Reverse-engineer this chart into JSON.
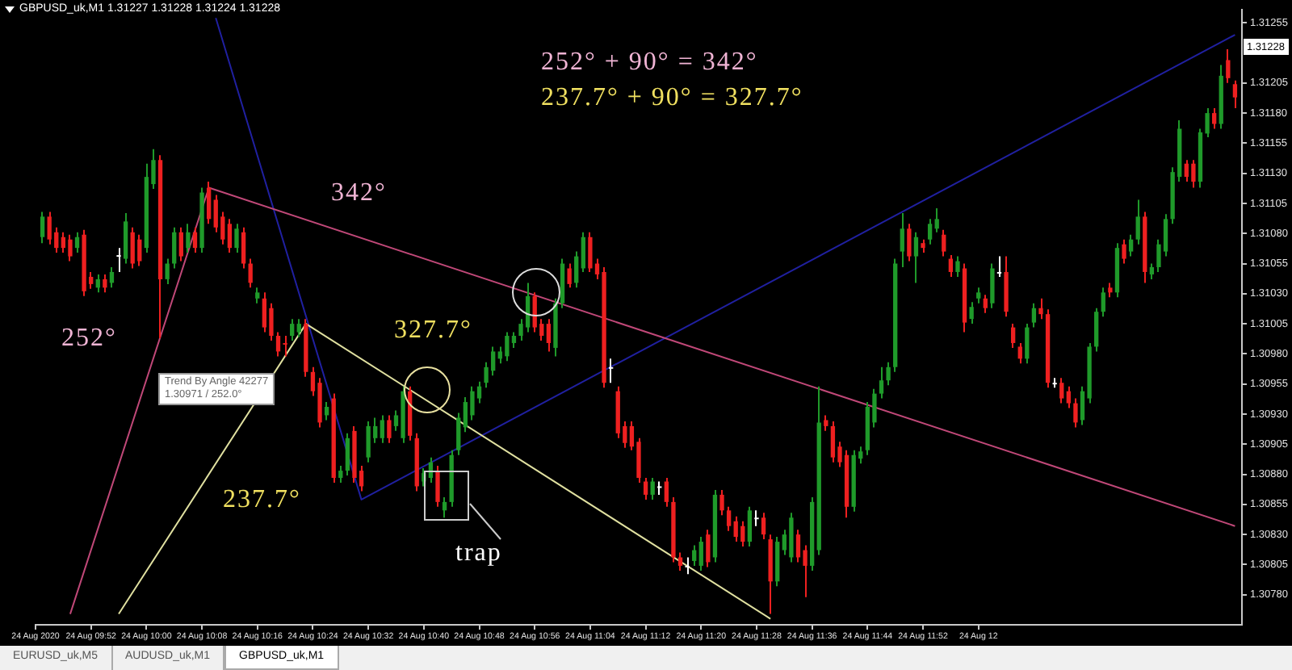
{
  "chart_data": {
    "type": "candlestick",
    "title": "GBPUSD_uk,M1  1.31227 1.31228 1.31224 1.31228",
    "x": [
      "2020-08-24T09:45",
      "2020-08-24T09:46",
      "2020-08-24T09:47",
      "2020-08-24T09:48",
      "2020-08-24T09:49",
      "2020-08-24T09:50",
      "2020-08-24T09:51",
      "2020-08-24T09:52",
      "2020-08-24T09:53",
      "2020-08-24T09:54",
      "2020-08-24T09:55",
      "2020-08-24T09:56",
      "2020-08-24T09:57",
      "2020-08-24T09:58",
      "2020-08-24T09:59",
      "2020-08-24T10:00",
      "2020-08-24T10:01",
      "2020-08-24T10:02",
      "2020-08-24T10:03",
      "2020-08-24T10:04",
      "2020-08-24T10:05",
      "2020-08-24T10:06",
      "2020-08-24T10:07",
      "2020-08-24T10:08",
      "2020-08-24T10:09",
      "2020-08-24T10:10",
      "2020-08-24T10:11",
      "2020-08-24T10:12",
      "2020-08-24T10:13",
      "2020-08-24T10:14",
      "2020-08-24T10:15",
      "2020-08-24T10:16",
      "2020-08-24T10:17",
      "2020-08-24T10:18",
      "2020-08-24T10:19",
      "2020-08-24T10:20",
      "2020-08-24T10:21",
      "2020-08-24T10:22",
      "2020-08-24T10:23",
      "2020-08-24T10:24",
      "2020-08-24T10:25",
      "2020-08-24T10:26",
      "2020-08-24T10:27",
      "2020-08-24T10:28",
      "2020-08-24T10:29",
      "2020-08-24T10:30",
      "2020-08-24T10:31",
      "2020-08-24T10:32",
      "2020-08-24T10:33",
      "2020-08-24T10:34",
      "2020-08-24T10:35",
      "2020-08-24T10:36",
      "2020-08-24T10:37",
      "2020-08-24T10:38",
      "2020-08-24T10:39",
      "2020-08-24T10:40",
      "2020-08-24T10:41",
      "2020-08-24T10:42",
      "2020-08-24T10:43",
      "2020-08-24T10:44",
      "2020-08-24T10:45",
      "2020-08-24T10:46",
      "2020-08-24T10:47",
      "2020-08-24T10:48",
      "2020-08-24T10:49",
      "2020-08-24T10:50",
      "2020-08-24T10:51",
      "2020-08-24T10:52",
      "2020-08-24T10:53",
      "2020-08-24T10:54",
      "2020-08-24T10:55",
      "2020-08-24T10:56",
      "2020-08-24T10:57",
      "2020-08-24T10:58",
      "2020-08-24T10:59",
      "2020-08-24T11:00",
      "2020-08-24T11:01",
      "2020-08-24T11:02",
      "2020-08-24T11:03",
      "2020-08-24T11:04",
      "2020-08-24T11:05",
      "2020-08-24T11:06",
      "2020-08-24T11:07",
      "2020-08-24T11:08",
      "2020-08-24T11:09",
      "2020-08-24T11:10",
      "2020-08-24T11:11",
      "2020-08-24T11:12",
      "2020-08-24T11:13",
      "2020-08-24T11:14",
      "2020-08-24T11:15",
      "2020-08-24T11:16",
      "2020-08-24T11:17",
      "2020-08-24T11:18",
      "2020-08-24T11:19",
      "2020-08-24T11:20",
      "2020-08-24T11:21",
      "2020-08-24T11:22",
      "2020-08-24T11:23",
      "2020-08-24T11:24",
      "2020-08-24T11:25",
      "2020-08-24T11:26",
      "2020-08-24T11:27",
      "2020-08-24T11:28",
      "2020-08-24T11:29",
      "2020-08-24T11:30",
      "2020-08-24T11:31",
      "2020-08-24T11:32",
      "2020-08-24T11:33",
      "2020-08-24T11:34",
      "2020-08-24T11:35",
      "2020-08-24T11:36",
      "2020-08-24T11:37",
      "2020-08-24T11:38",
      "2020-08-24T11:39",
      "2020-08-24T11:40",
      "2020-08-24T11:41",
      "2020-08-24T11:42",
      "2020-08-24T11:43",
      "2020-08-24T11:44",
      "2020-08-24T11:45",
      "2020-08-24T11:46",
      "2020-08-24T11:47",
      "2020-08-24T11:48",
      "2020-08-24T11:49",
      "2020-08-24T11:50",
      "2020-08-24T11:51",
      "2020-08-24T11:52",
      "2020-08-24T11:53",
      "2020-08-24T11:54",
      "2020-08-24T11:55",
      "2020-08-24T11:56",
      "2020-08-24T11:57",
      "2020-08-24T11:58",
      "2020-08-24T11:59",
      "2020-08-24T12:00",
      "2020-08-24T12:01",
      "2020-08-24T12:02",
      "2020-08-24T12:03",
      "2020-08-24T12:04",
      "2020-08-24T12:05",
      "2020-08-24T12:06",
      "2020-08-24T12:07",
      "2020-08-24T12:08",
      "2020-08-24T12:09",
      "2020-08-24T12:10",
      "2020-08-24T12:11",
      "2020-08-24T12:12",
      "2020-08-24T12:13",
      "2020-08-24T12:14",
      "2020-08-24T12:15",
      "2020-08-24T12:16",
      "2020-08-24T12:17",
      "2020-08-24T12:18",
      "2020-08-24T12:19",
      "2020-08-24T12:20",
      "2020-08-24T12:21",
      "2020-08-24T12:22",
      "2020-08-24T12:23",
      "2020-08-24T12:24",
      "2020-08-24T12:25",
      "2020-08-24T12:26",
      "2020-08-24T12:27",
      "2020-08-24T12:28",
      "2020-08-24T12:29",
      "2020-08-24T12:30",
      "2020-08-24T12:31",
      "2020-08-24T12:32",
      "2020-08-24T12:33",
      "2020-08-24T12:34",
      "2020-08-24T12:35",
      "2020-08-24T12:36",
      "2020-08-24T12:37"
    ],
    "ohlc": [
      [
        1.31077,
        1.31098,
        1.31072,
        1.31094
      ],
      [
        1.31094,
        1.31098,
        1.31071,
        1.31075
      ],
      [
        1.31081,
        1.31085,
        1.31064,
        1.31068
      ],
      [
        1.31077,
        1.31081,
        1.31064,
        1.31068
      ],
      [
        1.31075,
        1.31079,
        1.31057,
        1.31061
      ],
      [
        1.31068,
        1.31081,
        1.31064,
        1.31077
      ],
      [
        1.31079,
        1.31083,
        1.31028,
        1.31032
      ],
      [
        1.31044,
        1.31048,
        1.31034,
        1.31038
      ],
      [
        1.31035,
        1.31046,
        1.31031,
        1.31042
      ],
      [
        1.31042,
        1.31046,
        1.31031,
        1.31035
      ],
      [
        1.31039,
        1.31052,
        1.31035,
        1.31048
      ],
      [
        1.31062,
        1.31068,
        1.31048,
        1.31062
      ],
      [
        1.31059,
        1.31097,
        1.31055,
        1.3109
      ],
      [
        1.31081,
        1.31085,
        1.31051,
        1.31055
      ],
      [
        1.31075,
        1.31079,
        1.31053,
        1.31057
      ],
      [
        1.31068,
        1.31138,
        1.31064,
        1.31127
      ],
      [
        1.31121,
        1.3115,
        1.31117,
        1.31141
      ],
      [
        1.31141,
        1.31145,
        1.30993,
        1.31042
      ],
      [
        1.31042,
        1.31059,
        1.31038,
        1.31055
      ],
      [
        1.31055,
        1.31085,
        1.31051,
        1.31081
      ],
      [
        1.31081,
        1.31085,
        1.31057,
        1.31061
      ],
      [
        1.31068,
        1.31088,
        1.31064,
        1.31081
      ],
      [
        1.31081,
        1.31085,
        1.31064,
        1.31068
      ],
      [
        1.31068,
        1.31118,
        1.31064,
        1.31114
      ],
      [
        1.31118,
        1.31123,
        1.31088,
        1.31092
      ],
      [
        1.31108,
        1.31112,
        1.31081,
        1.31085
      ],
      [
        1.31094,
        1.31098,
        1.31071,
        1.31075
      ],
      [
        1.31088,
        1.31092,
        1.31064,
        1.31068
      ],
      [
        1.31068,
        1.31088,
        1.31064,
        1.31084
      ],
      [
        1.31081,
        1.31085,
        1.31051,
        1.31055
      ],
      [
        1.31055,
        1.31059,
        1.31035,
        1.31039
      ],
      [
        1.31026,
        1.31035,
        1.31022,
        1.31031
      ],
      [
        1.31026,
        1.31031,
        1.30998,
        1.31002
      ],
      [
        1.31018,
        1.31022,
        1.30991,
        1.30995
      ],
      [
        1.30995,
        1.30998,
        1.30978,
        1.30982
      ],
      [
        1.30989,
        1.30995,
        1.30978,
        1.30988
      ],
      [
        1.30995,
        1.31009,
        1.30991,
        1.31005
      ],
      [
        1.30998,
        1.31009,
        1.30994,
        1.31005
      ],
      [
        1.31005,
        1.31009,
        1.30961,
        1.30965
      ],
      [
        1.30965,
        1.30969,
        1.30945,
        1.30949
      ],
      [
        1.30956,
        1.3096,
        1.30919,
        1.30923
      ],
      [
        1.30929,
        1.3094,
        1.30925,
        1.30936
      ],
      [
        1.30943,
        1.30947,
        1.30873,
        1.30877
      ],
      [
        1.30877,
        1.30887,
        1.30873,
        1.30883
      ],
      [
        1.30883,
        1.30914,
        1.30879,
        1.3091
      ],
      [
        1.30916,
        1.3092,
        1.30873,
        1.30877
      ],
      [
        1.30883,
        1.30887,
        1.30866,
        1.3087
      ],
      [
        1.30894,
        1.30924,
        1.3089,
        1.3092
      ],
      [
        1.3091,
        1.30927,
        1.30906,
        1.3092
      ],
      [
        1.3091,
        1.30929,
        1.30906,
        1.30925
      ],
      [
        1.30925,
        1.30929,
        1.30906,
        1.3091
      ],
      [
        1.3092,
        1.30933,
        1.30916,
        1.30929
      ],
      [
        1.3091,
        1.30953,
        1.30906,
        1.30949
      ],
      [
        1.30949,
        1.30953,
        1.30908,
        1.30912
      ],
      [
        1.3091,
        1.30914,
        1.30866,
        1.3087
      ],
      [
        1.30874,
        1.30885,
        1.3087,
        1.30881
      ],
      [
        1.30877,
        1.30894,
        1.30873,
        1.3089
      ],
      [
        1.30883,
        1.30887,
        1.30853,
        1.30857
      ],
      [
        1.3085,
        1.30861,
        1.30844,
        1.30857
      ],
      [
        1.30857,
        1.309,
        1.30853,
        1.30896
      ],
      [
        1.309,
        1.30931,
        1.30896,
        1.30927
      ],
      [
        1.30919,
        1.30944,
        1.30915,
        1.3094
      ],
      [
        1.30929,
        1.30953,
        1.30925,
        1.30949
      ],
      [
        1.30943,
        1.30957,
        1.30939,
        1.30953
      ],
      [
        1.30956,
        1.30973,
        1.30952,
        1.30969
      ],
      [
        1.30966,
        1.30986,
        1.30962,
        1.30982
      ],
      [
        1.30976,
        1.30986,
        1.30972,
        1.30982
      ],
      [
        1.30978,
        1.30998,
        1.30974,
        1.30995
      ],
      [
        1.30989,
        1.30998,
        1.30985,
        1.30995
      ],
      [
        1.30995,
        1.31009,
        1.30991,
        1.31005
      ],
      [
        1.31002,
        1.31039,
        1.30998,
        1.31028
      ],
      [
        1.31028,
        1.31031,
        1.30998,
        1.31002
      ],
      [
        1.31005,
        1.31009,
        1.30991,
        1.30995
      ],
      [
        1.31005,
        1.31009,
        1.30982,
        1.30989
      ],
      [
        1.30985,
        1.31026,
        1.30978,
        1.31022
      ],
      [
        1.31022,
        1.31059,
        1.31018,
        1.31055
      ],
      [
        1.31051,
        1.31055,
        1.31035,
        1.31038
      ],
      [
        1.31039,
        1.31065,
        1.31035,
        1.31061
      ],
      [
        1.31051,
        1.31081,
        1.31048,
        1.31077
      ],
      [
        1.31077,
        1.31081,
        1.31048,
        1.31051
      ],
      [
        1.31055,
        1.31059,
        1.31042,
        1.31046
      ],
      [
        1.31048,
        1.31052,
        1.30952,
        1.30956
      ],
      [
        1.30969,
        1.30976,
        1.30956,
        1.30969
      ],
      [
        1.30949,
        1.30953,
        1.3091,
        1.30914
      ],
      [
        1.3092,
        1.30924,
        1.30902,
        1.30906
      ],
      [
        1.3092,
        1.30924,
        1.309,
        1.30903
      ],
      [
        1.30907,
        1.3091,
        1.30873,
        1.30877
      ],
      [
        1.30874,
        1.30877,
        1.30859,
        1.30863
      ],
      [
        1.30863,
        1.30877,
        1.30859,
        1.30874
      ],
      [
        1.3087,
        1.30874,
        1.30863,
        1.3087
      ],
      [
        1.30874,
        1.30877,
        1.30853,
        1.30857
      ],
      [
        1.30857,
        1.30861,
        1.30807,
        1.30811
      ],
      [
        1.30811,
        1.30815,
        1.308,
        1.30804
      ],
      [
        1.30804,
        1.30811,
        1.30797,
        1.30804
      ],
      [
        1.30808,
        1.30821,
        1.30804,
        1.30817
      ],
      [
        1.30804,
        1.30828,
        1.308,
        1.30824
      ],
      [
        1.3083,
        1.30834,
        1.30803,
        1.30807
      ],
      [
        1.30811,
        1.30867,
        1.30807,
        1.30863
      ],
      [
        1.30863,
        1.30867,
        1.30846,
        1.3085
      ],
      [
        1.3085,
        1.30853,
        1.30833,
        1.30837
      ],
      [
        1.30841,
        1.30845,
        1.30824,
        1.30828
      ],
      [
        1.30837,
        1.30841,
        1.3082,
        1.30824
      ],
      [
        1.30824,
        1.30853,
        1.3082,
        1.3085
      ],
      [
        1.30844,
        1.3085,
        1.30837,
        1.30844
      ],
      [
        1.30844,
        1.30848,
        1.30826,
        1.3083
      ],
      [
        1.30826,
        1.3083,
        1.30764,
        1.30791
      ],
      [
        1.30791,
        1.30828,
        1.30787,
        1.30824
      ],
      [
        1.30817,
        1.30834,
        1.30813,
        1.3083
      ],
      [
        1.30811,
        1.30848,
        1.30807,
        1.30844
      ],
      [
        1.3083,
        1.30834,
        1.30807,
        1.30811
      ],
      [
        1.30817,
        1.30821,
        1.30778,
        1.30804
      ],
      [
        1.30804,
        1.30861,
        1.308,
        1.30857
      ],
      [
        1.30817,
        1.30953,
        1.30813,
        1.30923
      ],
      [
        1.30925,
        1.30929,
        1.30916,
        1.3092
      ],
      [
        1.3092,
        1.30924,
        1.3089,
        1.30894
      ],
      [
        1.30903,
        1.30907,
        1.30886,
        1.3089
      ],
      [
        1.30896,
        1.309,
        1.30844,
        1.30853
      ],
      [
        1.30853,
        1.309,
        1.30849,
        1.30896
      ],
      [
        1.30893,
        1.30903,
        1.30889,
        1.30899
      ],
      [
        1.309,
        1.3094,
        1.30896,
        1.30936
      ],
      [
        1.30923,
        1.30951,
        1.30919,
        1.30947
      ],
      [
        1.30947,
        1.30969,
        1.30943,
        1.30958
      ],
      [
        1.30958,
        1.30973,
        1.30954,
        1.30969
      ],
      [
        1.30969,
        1.31059,
        1.30965,
        1.31055
      ],
      [
        1.31065,
        1.31097,
        1.31052,
        1.31084
      ],
      [
        1.31084,
        1.31088,
        1.31057,
        1.31061
      ],
      [
        1.31061,
        1.31081,
        1.31039,
        1.31077
      ],
      [
        1.31072,
        1.31075,
        1.31064,
        1.31068
      ],
      [
        1.31075,
        1.31092,
        1.31071,
        1.31088
      ],
      [
        1.31084,
        1.31101,
        1.31081,
        1.31092
      ],
      [
        1.31079,
        1.31083,
        1.31061,
        1.31065
      ],
      [
        1.31059,
        1.31062,
        1.31044,
        1.31048
      ],
      [
        1.31048,
        1.31061,
        1.31044,
        1.31057
      ],
      [
        1.31051,
        1.31055,
        1.30998,
        1.31006
      ],
      [
        1.31009,
        1.31023,
        1.31005,
        1.31019
      ],
      [
        1.31026,
        1.31035,
        1.31022,
        1.31031
      ],
      [
        1.31026,
        1.31029,
        1.31014,
        1.31018
      ],
      [
        1.31022,
        1.31055,
        1.31018,
        1.31051
      ],
      [
        1.31048,
        1.31061,
        1.31044,
        1.31048
      ],
      [
        1.31048,
        1.31061,
        1.31011,
        1.31015
      ],
      [
        1.31002,
        1.31005,
        1.30985,
        1.30989
      ],
      [
        1.30986,
        1.30989,
        1.30972,
        1.30976
      ],
      [
        1.30976,
        1.31005,
        1.30972,
        1.31002
      ],
      [
        1.31006,
        1.31022,
        1.31002,
        1.31018
      ],
      [
        1.31018,
        1.31026,
        1.31009,
        1.31013
      ],
      [
        1.31013,
        1.31017,
        1.30952,
        1.30956
      ],
      [
        1.30956,
        1.3096,
        1.30952,
        1.30956
      ],
      [
        1.30956,
        1.3096,
        1.30939,
        1.30943
      ],
      [
        1.30949,
        1.30953,
        1.30935,
        1.30939
      ],
      [
        1.30939,
        1.30943,
        1.30919,
        1.30923
      ],
      [
        1.30925,
        1.30953,
        1.30921,
        1.30949
      ],
      [
        1.30943,
        1.30989,
        1.30939,
        1.30986
      ],
      [
        1.30986,
        1.31018,
        1.30982,
        1.31015
      ],
      [
        1.31015,
        1.31035,
        1.31011,
        1.31031
      ],
      [
        1.31035,
        1.31039,
        1.31027,
        1.31031
      ],
      [
        1.31031,
        1.31072,
        1.31027,
        1.31068
      ],
      [
        1.31071,
        1.31075,
        1.31055,
        1.31059
      ],
      [
        1.31065,
        1.31079,
        1.31061,
        1.31075
      ],
      [
        1.31075,
        1.31108,
        1.31071,
        1.31094
      ],
      [
        1.31094,
        1.31098,
        1.31039,
        1.31048
      ],
      [
        1.31046,
        1.31055,
        1.31042,
        1.31052
      ],
      [
        1.31052,
        1.31075,
        1.31048,
        1.31071
      ],
      [
        1.31065,
        1.31096,
        1.31061,
        1.31092
      ],
      [
        1.31092,
        1.31135,
        1.31088,
        1.31131
      ],
      [
        1.31127,
        1.31174,
        1.31123,
        1.31167
      ],
      [
        1.31138,
        1.31141,
        1.31123,
        1.31127
      ],
      [
        1.31138,
        1.31141,
        1.31118,
        1.31123
      ],
      [
        1.31123,
        1.31167,
        1.31118,
        1.31164
      ],
      [
        1.31163,
        1.31184,
        1.3116,
        1.3118
      ],
      [
        1.3118,
        1.31184,
        1.31167,
        1.31171
      ],
      [
        1.31171,
        1.3122,
        1.31167,
        1.31211
      ],
      [
        1.31224,
        1.31233,
        1.31205,
        1.31209
      ],
      [
        1.31204,
        1.31207,
        1.31184,
        1.31193
      ]
    ],
    "series": [
      {
        "type": "line",
        "color": "#c04878",
        "x": [
          "2020-08-24T09:49",
          "2020-08-24T10:09",
          "2020-08-24T12:37"
        ],
        "values": [
          1.30764,
          1.31118,
          1.30837
        ]
      },
      {
        "type": "line",
        "color": "#e0e0a0",
        "x": [
          "2020-08-24T09:56",
          "2020-08-24T10:23",
          "2020-08-24T11:30"
        ],
        "values": [
          1.30764,
          1.31005,
          1.3076
        ]
      },
      {
        "type": "line",
        "color": "#2020a0",
        "x": [
          "2020-08-24T10:10",
          "2020-08-24T10:31",
          "2020-08-24T12:37"
        ],
        "values": [
          1.31259,
          1.30859,
          1.31245
        ]
      }
    ],
    "xlim": [
      "2020-08-24T09:44",
      "2020-08-24T12:38"
    ],
    "xticks": [
      {
        "value": "2020-08-24T09:44",
        "label": "24 Aug 2020"
      },
      {
        "value": "2020-08-24T09:52",
        "label": "24 Aug 09:52"
      },
      {
        "value": "2020-08-24T10:00",
        "label": "24 Aug 10:00"
      },
      {
        "value": "2020-08-24T10:08",
        "label": "24 Aug 10:08"
      },
      {
        "value": "2020-08-24T10:16",
        "label": "24 Aug 10:16"
      },
      {
        "value": "2020-08-24T10:24",
        "label": "24 Aug 10:24"
      },
      {
        "value": "2020-08-24T10:32",
        "label": "24 Aug 10:32"
      },
      {
        "value": "2020-08-24T10:40",
        "label": "24 Aug 10:40"
      },
      {
        "value": "2020-08-24T10:48",
        "label": "24 Aug 10:48"
      },
      {
        "value": "2020-08-24T10:56",
        "label": "24 Aug 10:56"
      },
      {
        "value": "2020-08-24T11:04",
        "label": "24 Aug 11:04"
      },
      {
        "value": "2020-08-24T11:12",
        "label": "24 Aug 11:12"
      },
      {
        "value": "2020-08-24T11:20",
        "label": "24 Aug 11:20"
      },
      {
        "value": "2020-08-24T11:28",
        "label": "24 Aug 11:28"
      },
      {
        "value": "2020-08-24T11:36",
        "label": "24 Aug 11:36"
      },
      {
        "value": "2020-08-24T11:44",
        "label": "24 Aug 11:44"
      },
      {
        "value": "2020-08-24T11:52",
        "label": "24 Aug 11:52"
      },
      {
        "value": "2020-08-24T12:00",
        "label": "24 Aug 12"
      }
    ],
    "ylim": [
      1.30755,
      1.31266
    ],
    "yticks": [
      {
        "value": 1.3078,
        "label": "1.30780"
      },
      1.30805,
      {
        "value": 1.3083,
        "label": "1.30830"
      },
      1.30855,
      {
        "value": 1.3088,
        "label": "1.30880"
      },
      1.30905,
      {
        "value": 1.3093,
        "label": "1.30930"
      },
      1.30955,
      {
        "value": 1.3098,
        "label": "1.30980"
      },
      1.31005,
      {
        "value": 1.3103,
        "label": "1.31030"
      },
      1.31055,
      {
        "value": 1.3108,
        "label": "1.31080"
      },
      1.31105,
      {
        "value": 1.3113,
        "label": "1.31130"
      },
      1.31155,
      {
        "value": 1.3118,
        "label": "1.31180"
      },
      1.31205,
      1.31255
    ],
    "annotations": [
      "342°",
      "252°",
      "327.7°",
      "237.7°",
      "252° + 90° = 342°",
      "237.7° + 90° = 327.7°",
      "trap",
      "Trend By Angle 42277",
      "1.30971 / 252.0°",
      "EURUSD_uk,M5",
      "AUDUSD_uk,M1",
      "GBPUSD_uk,M1",
      "1.31228"
    ],
    "grid": false,
    "legend": false
  }
}
